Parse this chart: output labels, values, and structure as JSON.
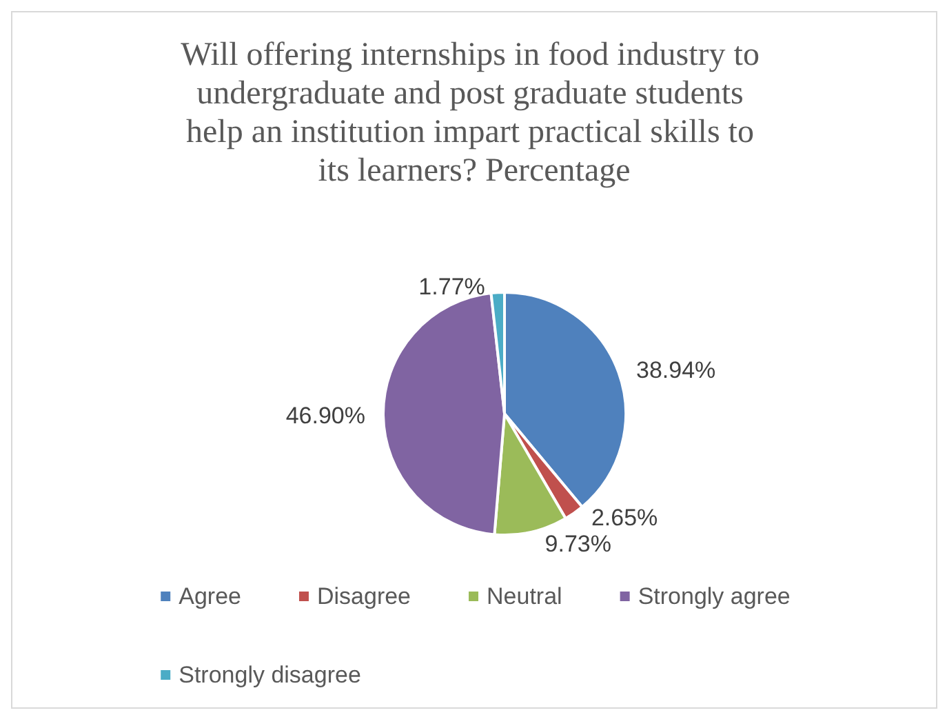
{
  "chart_data": {
    "type": "pie",
    "title": "Will offering internships in food industry to undergraduate and post graduate students help an institution impart practical skills to its learners? Percentage",
    "categories": [
      "Agree",
      "Disagree",
      "Neutral",
      "Strongly agree",
      "Strongly disagree"
    ],
    "values": [
      38.94,
      2.65,
      9.73,
      46.9,
      1.77
    ],
    "value_labels": [
      "38.94%",
      "2.65%",
      "9.73%",
      "46.90%",
      "1.77%"
    ],
    "colors": [
      "#4f81bd",
      "#c0504d",
      "#9bbb59",
      "#8064a2",
      "#4bacc6"
    ],
    "legend": "bottom"
  }
}
